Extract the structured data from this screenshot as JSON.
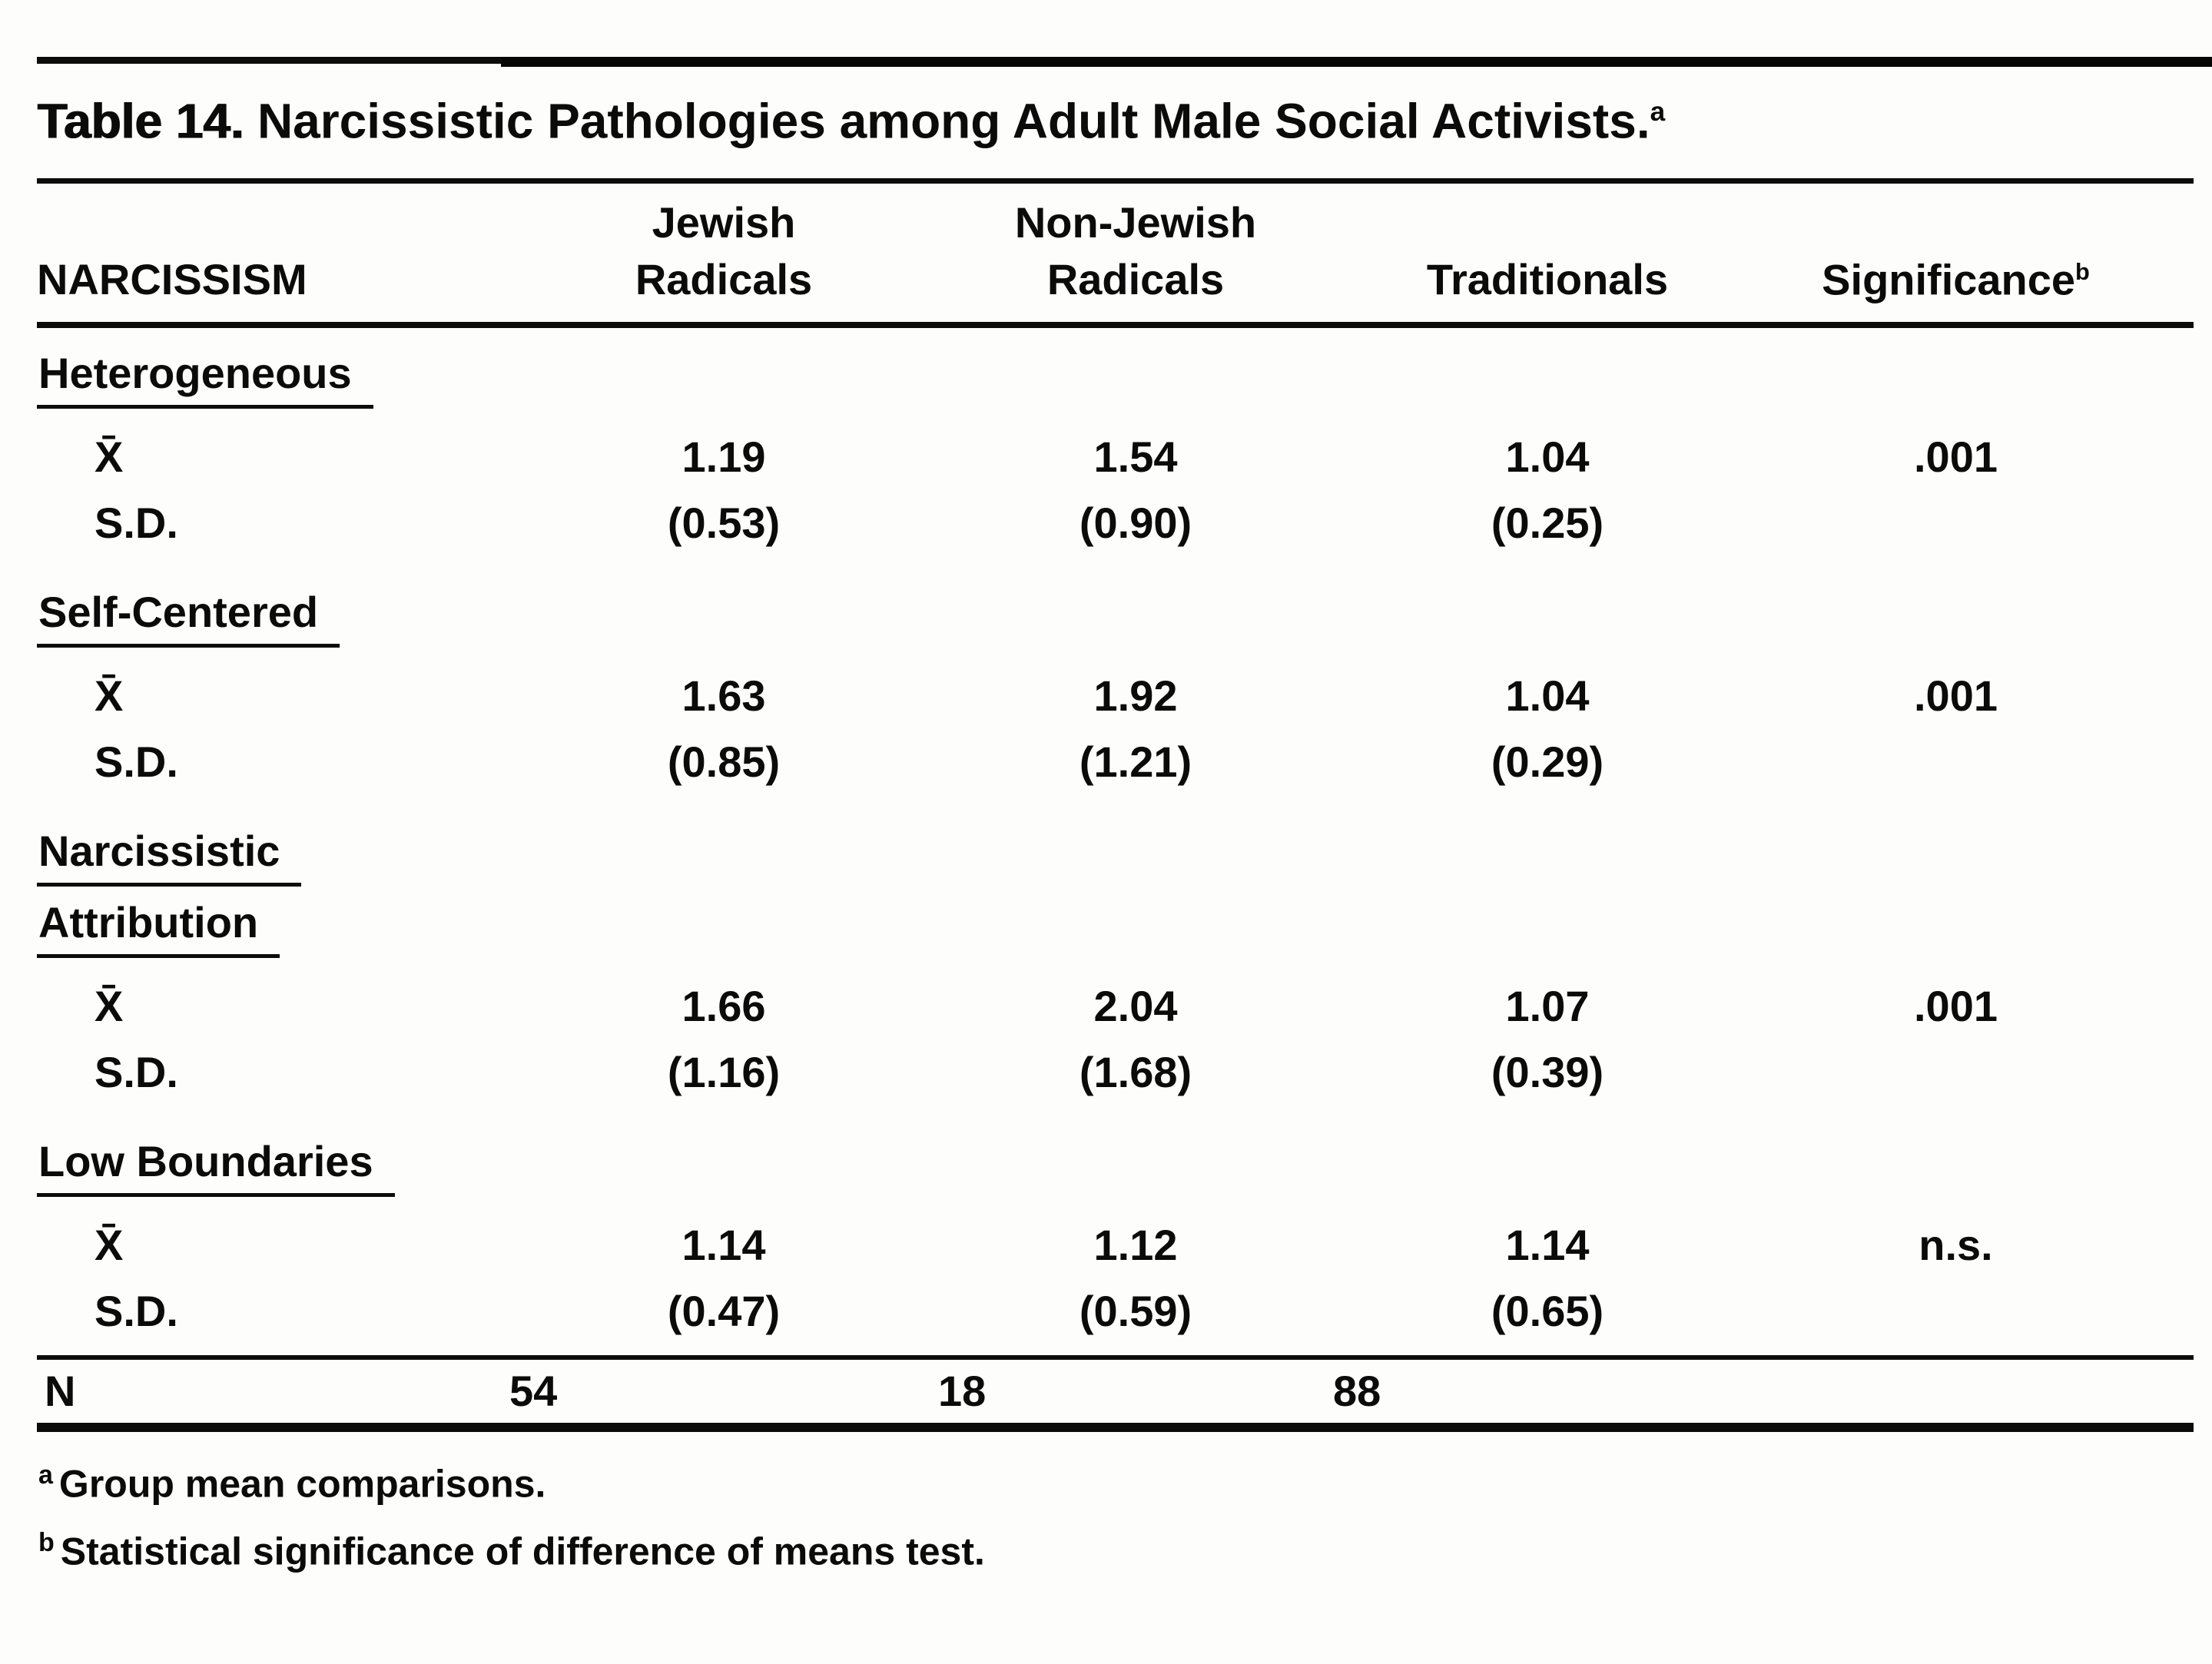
{
  "table": {
    "title": {
      "prefix": "Table 14.",
      "text": " Narcissistic Pathologies among Adult Male Social Activists.",
      "sup": "a"
    },
    "header": {
      "col0": {
        "label": "NARCISSISM"
      },
      "col1": {
        "line1": "Jewish",
        "line2": "Radicals"
      },
      "col2": {
        "line1": "Non-Jewish",
        "line2": "Radicals"
      },
      "col3": {
        "label": "Traditionals"
      },
      "col4": {
        "label": "Significance",
        "sup": "b"
      }
    },
    "row_labels": {
      "mean": "X̄",
      "sd": "S.D."
    },
    "sections": [
      {
        "name_lines": [
          "Heterogeneous"
        ],
        "mean": [
          "1.19",
          "1.54",
          "1.04"
        ],
        "mean_sig": ".001",
        "sd": [
          "(0.53)",
          "(0.90)",
          "(0.25)"
        ],
        "sd_sig": ""
      },
      {
        "name_lines": [
          "Self-Centered"
        ],
        "mean": [
          "1.63",
          "1.92",
          "1.04"
        ],
        "mean_sig": ".001",
        "sd": [
          "(0.85)",
          "(1.21)",
          "(0.29)"
        ],
        "sd_sig": ""
      },
      {
        "name_lines": [
          "Narcissistic",
          "Attribution"
        ],
        "mean": [
          "1.66",
          "2.04",
          "1.07"
        ],
        "mean_sig": ".001",
        "sd": [
          "(1.16)",
          "(1.68)",
          "(0.39)"
        ],
        "sd_sig": ""
      },
      {
        "name_lines": [
          "Low Boundaries"
        ],
        "mean": [
          "1.14",
          "1.12",
          "1.14"
        ],
        "mean_sig": "n.s.",
        "sd": [
          "(0.47)",
          "(0.59)",
          "(0.65)"
        ],
        "sd_sig": ""
      }
    ],
    "n_row": {
      "label": "N",
      "values": [
        "54",
        "18",
        "88"
      ],
      "sig": ""
    },
    "footnotes": [
      {
        "sup": "a",
        "text": "Group mean comparisons."
      },
      {
        "sup": "b",
        "text": "Statistical significance of difference of means test."
      }
    ]
  }
}
